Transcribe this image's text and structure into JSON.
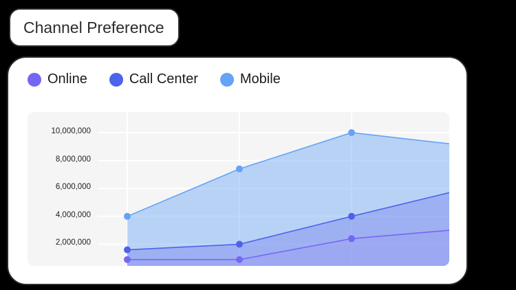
{
  "title": "Channel Preference",
  "legend": [
    {
      "label": "Online",
      "color": "#7567f2"
    },
    {
      "label": "Call Center",
      "color": "#4d63ec"
    },
    {
      "label": "Mobile",
      "color": "#64a3f6"
    }
  ],
  "y_ticks": [
    "10,000,000",
    "8,000,000",
    "6,000,000",
    "4,000,000",
    "2,000,000"
  ],
  "chart_data": {
    "type": "area",
    "title": "Channel Preference",
    "xlabel": "",
    "ylabel": "",
    "x": [
      1,
      2,
      3,
      4
    ],
    "series": [
      {
        "name": "Online",
        "values": [
          900000,
          900000,
          2400000,
          3000000
        ],
        "color": "#7567f2"
      },
      {
        "name": "Call Center",
        "values": [
          1600000,
          2000000,
          4000000,
          5700000
        ],
        "color": "#4d63ec"
      },
      {
        "name": "Mobile",
        "values": [
          4000000,
          7400000,
          10000000,
          9200000
        ],
        "color": "#64a3f6"
      }
    ],
    "y_tick_labels": [
      "2,000,000",
      "4,000,000",
      "6,000,000",
      "8,000,000",
      "10,000,000"
    ],
    "ylim": [
      0,
      11000000
    ],
    "grid": true,
    "legend_position": "top-left",
    "note": "Last point clipped at right edge of plot area"
  }
}
